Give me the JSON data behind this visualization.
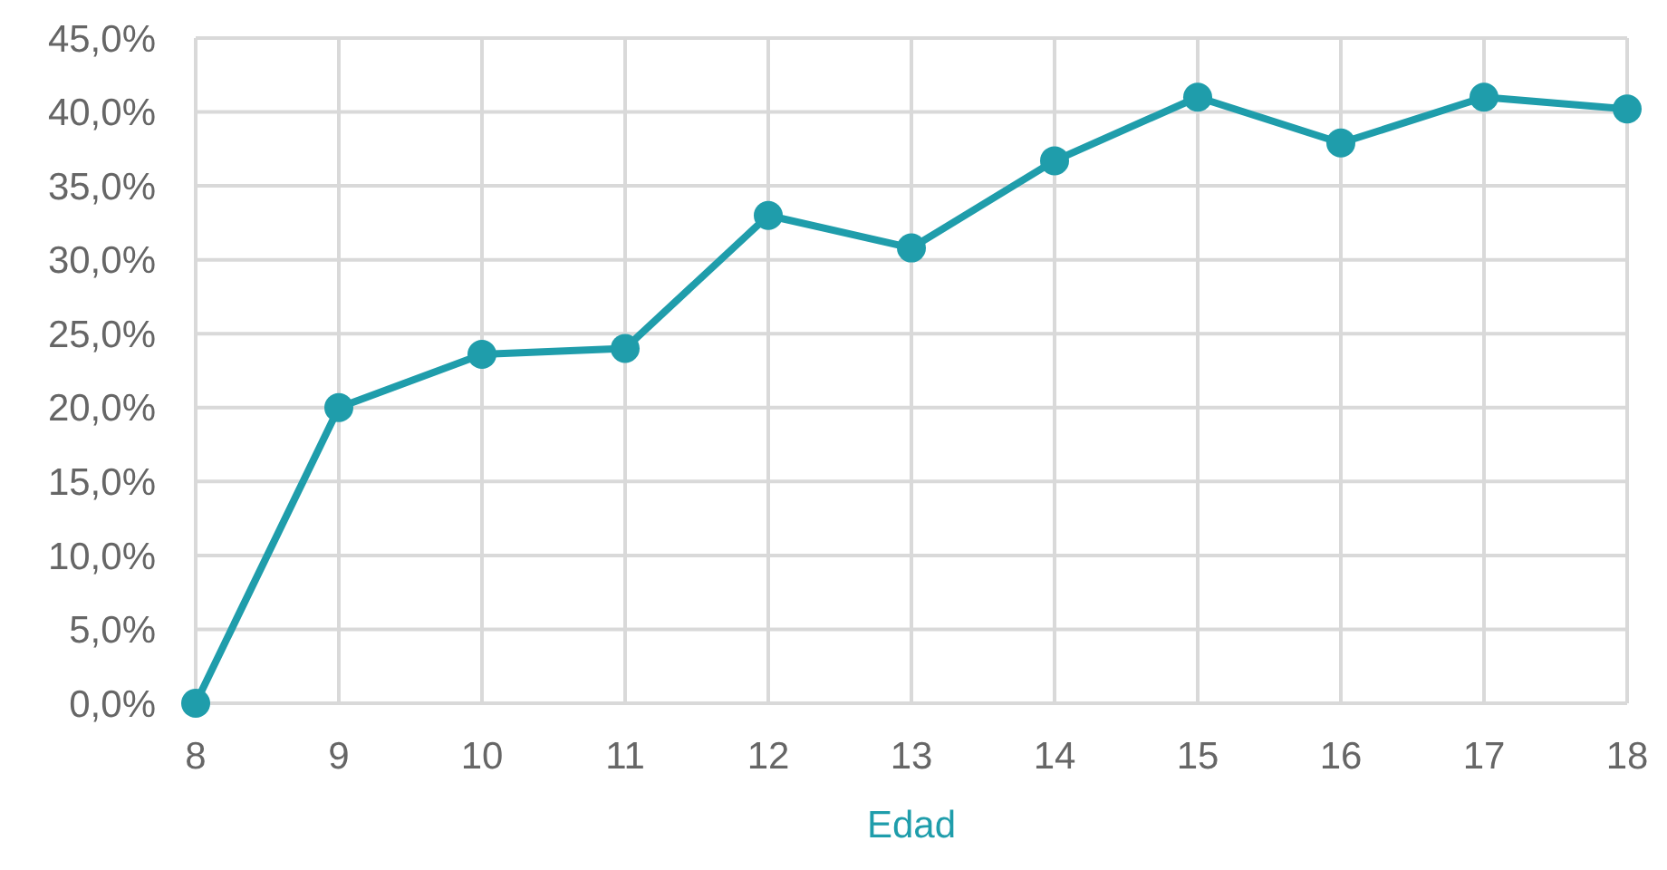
{
  "chart_data": {
    "type": "line",
    "xlabel": "Edad",
    "x": [
      8,
      9,
      10,
      11,
      12,
      13,
      14,
      15,
      16,
      17,
      18
    ],
    "series": [
      {
        "color": "#1f9dab",
        "values": [
          0,
          20,
          23.6,
          24,
          33,
          30.8,
          36.7,
          41,
          37.9,
          41,
          40.2
        ]
      }
    ],
    "xlim": [
      8,
      18
    ],
    "xticks": [
      8,
      9,
      10,
      11,
      12,
      13,
      14,
      15,
      16,
      17,
      18
    ],
    "ylim": [
      0,
      45
    ],
    "yticks": [
      {
        "value": 0,
        "label": "0,0%"
      },
      {
        "value": 5,
        "label": "5,0%"
      },
      {
        "value": 10,
        "label": "10,0%"
      },
      {
        "value": 15,
        "label": "15,0%"
      },
      {
        "value": 20,
        "label": "20,0%"
      },
      {
        "value": 25,
        "label": "25,0%"
      },
      {
        "value": 30,
        "label": "30,0%"
      },
      {
        "value": 35,
        "label": "35,0%"
      },
      {
        "value": 40,
        "label": "40,0%"
      },
      {
        "value": 45,
        "label": "45,0%"
      }
    ],
    "grid": true,
    "marker": "circle",
    "line_style": "solid"
  }
}
